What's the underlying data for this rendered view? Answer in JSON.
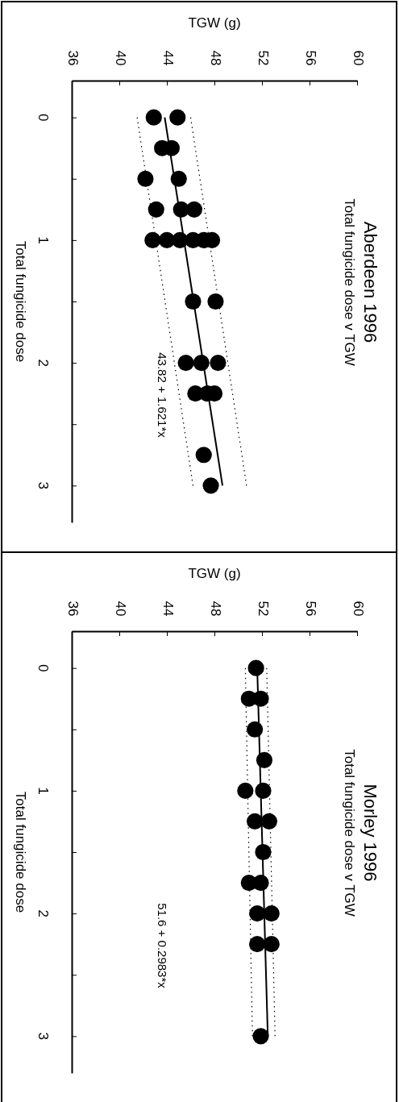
{
  "chart_data": [
    {
      "type": "scatter",
      "title": "Aberdeen 1996",
      "subtitle": "Total fungicide dose v TGW",
      "xlabel": "TGW (g)",
      "ylabel": "Total fungicide dose",
      "annotations": [
        "43.82 + 1.621*x"
      ],
      "xlim": [
        36,
        60
      ],
      "xticks": [
        36,
        40,
        44,
        48,
        52,
        56,
        60
      ],
      "ylim": [
        3.3,
        -0.3
      ],
      "yticks": [
        0,
        {
          "value": 0.5,
          "label": null
        },
        1,
        {
          "value": 1.5,
          "label": null
        },
        2,
        {
          "value": 2.5,
          "label": null
        },
        3
      ],
      "series": [
        {
          "type": "scatter",
          "marker": "circle",
          "color": "#000000",
          "x": [
            42.9,
            44.9,
            43.6,
            44.4,
            42.2,
            45.0,
            43.1,
            45.2,
            46.3,
            42.8,
            44.0,
            45.1,
            46.2,
            47.1,
            47.8,
            46.2,
            48.1,
            45.6,
            46.9,
            48.3,
            46.4,
            47.4,
            48.0,
            47.1,
            47.7
          ],
          "values": [
            0,
            0,
            0.25,
            0.25,
            0.5,
            0.5,
            0.75,
            0.75,
            0.75,
            1,
            1,
            1,
            1,
            1,
            1,
            1.5,
            1.5,
            2,
            2,
            2,
            2.25,
            2.25,
            2.25,
            2.75,
            3
          ]
        },
        {
          "type": "line",
          "color": "#000000",
          "line_style": "solid",
          "x": [
            43.82,
            48.68
          ],
          "values": [
            0,
            3
          ]
        },
        {
          "type": "line",
          "color": "#000000",
          "line_style": "dotted",
          "x": [
            41.5,
            46.2
          ],
          "values": [
            0,
            3
          ]
        },
        {
          "type": "line",
          "color": "#000000",
          "line_style": "dotted",
          "x": [
            46.0,
            50.7
          ],
          "values": [
            0,
            3
          ]
        }
      ]
    },
    {
      "type": "scatter",
      "title": "Morley 1996",
      "subtitle": "Total fungicide dose v TGW",
      "xlabel": "TGW (g)",
      "ylabel": "Total fungicide dose",
      "annotations": [
        "51.6 + 0.2983*x"
      ],
      "xlim": [
        36,
        60
      ],
      "xticks": [
        36,
        40,
        44,
        48,
        52,
        56,
        60
      ],
      "ylim": [
        3.3,
        -0.3
      ],
      "yticks": [
        0,
        {
          "value": 0.5,
          "label": null
        },
        1,
        {
          "value": 1.5,
          "label": null
        },
        2,
        {
          "value": 2.5,
          "label": null
        },
        3
      ],
      "series": [
        {
          "type": "scatter",
          "marker": "circle",
          "color": "#000000",
          "x": [
            51.5,
            50.9,
            51.9,
            51.4,
            52.2,
            50.6,
            52.1,
            51.4,
            52.6,
            52.1,
            50.9,
            51.9,
            51.6,
            52.8,
            51.6,
            52.8,
            51.9
          ],
          "values": [
            0,
            0.25,
            0.25,
            0.5,
            0.75,
            1,
            1,
            1.25,
            1.25,
            1.5,
            1.75,
            1.75,
            2,
            2,
            2.25,
            2.25,
            3
          ]
        },
        {
          "type": "line",
          "color": "#000000",
          "line_style": "solid",
          "x": [
            51.6,
            52.49
          ],
          "values": [
            0,
            3
          ]
        },
        {
          "type": "line",
          "color": "#000000",
          "line_style": "dotted",
          "x": [
            50.6,
            51.2
          ],
          "values": [
            0,
            3
          ]
        },
        {
          "type": "line",
          "color": "#000000",
          "line_style": "dotted",
          "x": [
            52.4,
            53.1
          ],
          "values": [
            0,
            3
          ]
        }
      ]
    }
  ]
}
